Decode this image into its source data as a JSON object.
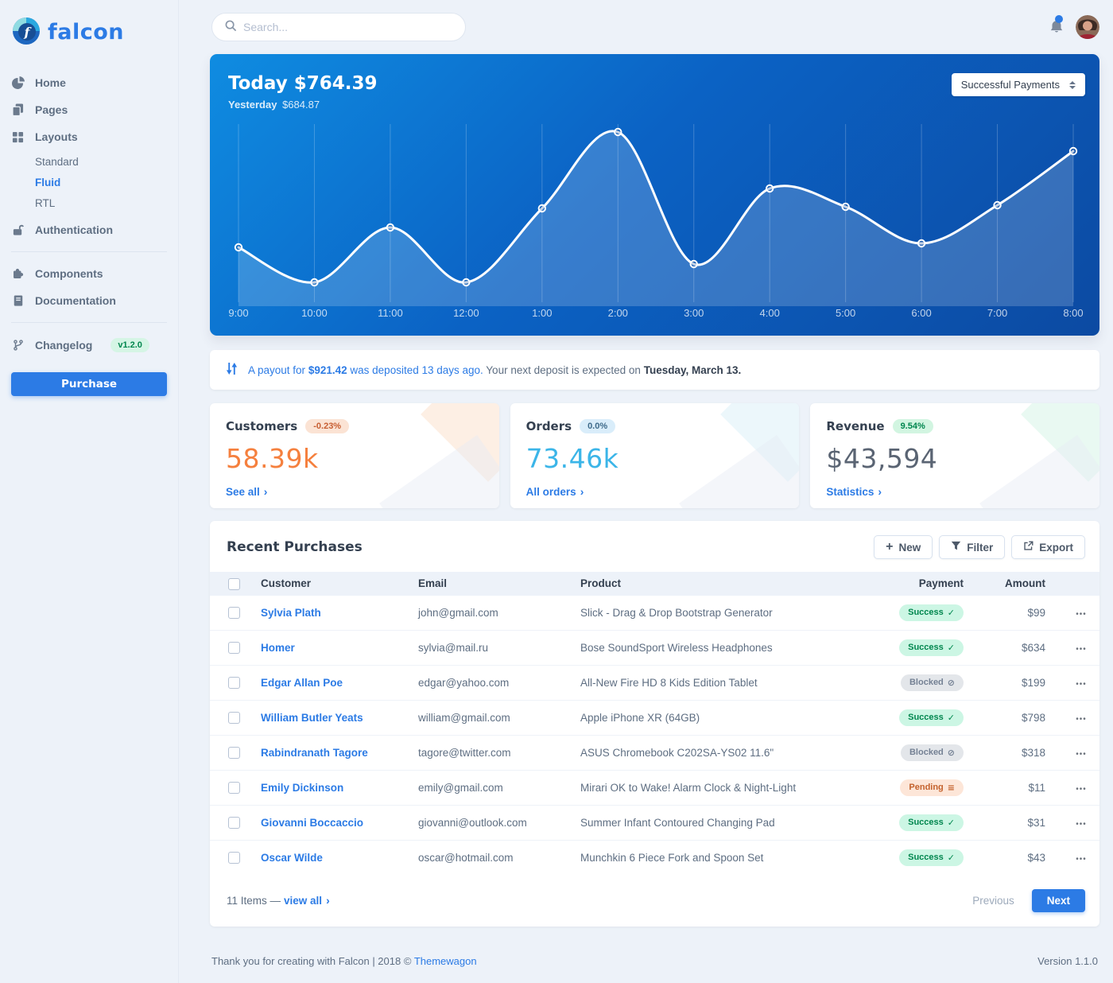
{
  "brand": {
    "name": "falcon"
  },
  "topbar": {
    "search_placeholder": "Search..."
  },
  "sidebar": {
    "items": [
      {
        "label": "Home",
        "icon": "pie-chart"
      },
      {
        "label": "Pages",
        "icon": "pages"
      },
      {
        "label": "Layouts",
        "icon": "grid"
      },
      {
        "label": "Authentication",
        "icon": "unlock"
      },
      {
        "label": "Components",
        "icon": "puzzle"
      },
      {
        "label": "Documentation",
        "icon": "book"
      },
      {
        "label": "Changelog",
        "icon": "code-branch",
        "badge": "v1.2.0"
      }
    ],
    "layouts_children": [
      "Standard",
      "Fluid",
      "RTL"
    ],
    "active_child": "Fluid",
    "purchase_label": "Purchase"
  },
  "chart_card": {
    "title_label": "Today",
    "title_value": "$764.39",
    "subtitle_label": "Yesterday",
    "subtitle_value": "$684.87",
    "select_value": "Successful Payments"
  },
  "chart_data": {
    "type": "line",
    "title": "Successful Payments today",
    "categories": [
      "9:00",
      "10:00",
      "11:00",
      "12:00",
      "1:00",
      "2:00",
      "3:00",
      "4:00",
      "5:00",
      "6:00",
      "7:00",
      "8:00"
    ],
    "values": [
      74,
      30,
      99,
      30,
      123,
      219,
      53,
      148,
      125,
      79,
      127,
      195
    ],
    "series_name": "Payments",
    "xlabel": "",
    "ylabel": "",
    "ylim": [
      0,
      240
    ],
    "grid": "vertical-only",
    "legend": "none",
    "line_color": "#ffffff",
    "fill_color": "rgba(255,255,255,0.18)",
    "note": "y-values estimated from pixel positions; no y-axis labels shown"
  },
  "payout_banner": {
    "link_prefix": "A payout for",
    "amount": "$921.42",
    "link_suffix": "was deposited 13 days ago.",
    "rest_text": "Your next deposit is expected on",
    "date": "Tuesday, March 13."
  },
  "stats_cards": [
    {
      "title": "Customers",
      "badge": "-0.23%",
      "value": "58.39k",
      "link": "See all",
      "value_color": "#f5803e"
    },
    {
      "title": "Orders",
      "badge": "0.0%",
      "value": "73.46k",
      "link": "All orders",
      "value_color": "#3bb5e8"
    },
    {
      "title": "Revenue",
      "badge": "9.54%",
      "value": "$43,594",
      "link": "Statistics",
      "value_color": "#5a6473"
    }
  ],
  "table": {
    "title": "Recent Purchases",
    "buttons": {
      "new": "New",
      "filter": "Filter",
      "export": "Export"
    },
    "headers": [
      "Customer",
      "Email",
      "Product",
      "Payment",
      "Amount"
    ],
    "rows": [
      {
        "customer": "Sylvia Plath",
        "email": "john@gmail.com",
        "product": "Slick - Drag & Drop Bootstrap Generator",
        "payment": "Success",
        "amount": "$99"
      },
      {
        "customer": "Homer",
        "email": "sylvia@mail.ru",
        "product": "Bose SoundSport Wireless Headphones",
        "payment": "Success",
        "amount": "$634"
      },
      {
        "customer": "Edgar Allan Poe",
        "email": "edgar@yahoo.com",
        "product": "All-New Fire HD 8 Kids Edition Tablet",
        "payment": "Blocked",
        "amount": "$199"
      },
      {
        "customer": "William Butler Yeats",
        "email": "william@gmail.com",
        "product": "Apple iPhone XR (64GB)",
        "payment": "Success",
        "amount": "$798"
      },
      {
        "customer": "Rabindranath Tagore",
        "email": "tagore@twitter.com",
        "product": "ASUS Chromebook C202SA-YS02 11.6\"",
        "payment": "Blocked",
        "amount": "$318"
      },
      {
        "customer": "Emily Dickinson",
        "email": "emily@gmail.com",
        "product": "Mirari OK to Wake! Alarm Clock & Night-Light",
        "payment": "Pending",
        "amount": "$11"
      },
      {
        "customer": "Giovanni Boccaccio",
        "email": "giovanni@outlook.com",
        "product": "Summer Infant Contoured Changing Pad",
        "payment": "Success",
        "amount": "$31"
      },
      {
        "customer": "Oscar Wilde",
        "email": "oscar@hotmail.com",
        "product": "Munchkin 6 Piece Fork and Spoon Set",
        "payment": "Success",
        "amount": "$43"
      }
    ],
    "status_icons": {
      "Success": "check",
      "Blocked": "ban",
      "Pending": "stream"
    },
    "footer": {
      "items_text": "11 Items —",
      "view_all": "view all",
      "previous": "Previous",
      "next": "Next"
    }
  },
  "page_footer": {
    "left_text": "Thank you for creating with Falcon | 2018 ©",
    "link": "Themewagon",
    "version": "Version 1.1.0"
  },
  "colors": {
    "primary": "#2c7be5",
    "page_bg": "#edf2f9",
    "chart_gradient": [
      "#0f8ce1",
      "#0c4aa2"
    ],
    "success_text": "#00864e",
    "success_bg": "#ccf6e4",
    "blocked_text": "#748194",
    "blocked_bg": "#e3e6ea",
    "pending_text": "#c4622d",
    "pending_bg": "#fde6d8",
    "heading": "#344050",
    "body_text": "#5e6e82"
  }
}
